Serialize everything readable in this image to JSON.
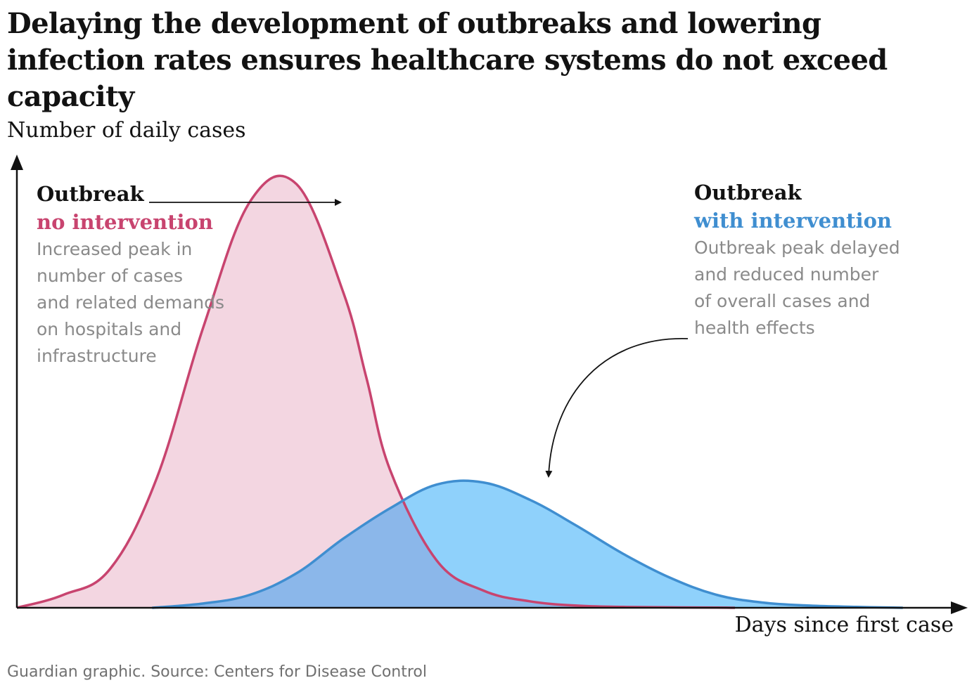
{
  "title": "Delaying the development of outbreaks and lowering infection rates ensures healthcare systems do not exceed capacity",
  "source": "Guardian graphic. Source: Centers for Disease Control",
  "colors": {
    "no_intervention_line": "#c8446f",
    "no_intervention_fill": "#f3d6e1",
    "with_intervention_line": "#3f8ed0",
    "with_intervention_fill": "#8fd1fb",
    "overlap_fill": "#8bb7ea",
    "axis": "#121212",
    "annotation_text": "#8a8a8a"
  },
  "annotations": {
    "left": {
      "head": "Outbreak",
      "sub": "no intervention",
      "desc": "Increased peak in\nnumber of cases\nand related demands\non hospitals and\ninfrastructure"
    },
    "right": {
      "head": "Outbreak",
      "sub": "with intervention",
      "desc": "Outbreak peak delayed\nand reduced number\nof overall cases and\nhealth effects"
    }
  },
  "chart_data": {
    "type": "area",
    "title": "Delaying the development of outbreaks and lowering infection rates ensures healthcare systems do not exceed capacity",
    "xlabel": "Days since first case",
    "ylabel": "Number of daily cases",
    "x_ticks": false,
    "y_ticks": false,
    "grid": false,
    "xlim": [
      0,
      100
    ],
    "ylim": [
      0,
      100
    ],
    "series": [
      {
        "name": "no intervention",
        "x": [
          0,
          5,
          10,
          15,
          20,
          25,
          30,
          35,
          37.5,
          40,
          45,
          50,
          55,
          60,
          65,
          70,
          75,
          77
        ],
        "y": [
          0,
          3,
          9,
          30,
          65,
          94,
          98,
          73,
          53,
          32,
          11,
          4,
          1.5,
          0.5,
          0.2,
          0.1,
          0.05,
          0
        ]
      },
      {
        "name": "with intervention",
        "x": [
          14.5,
          20,
          25,
          30,
          35,
          40,
          45,
          50,
          55,
          60,
          65,
          70,
          75,
          80,
          85,
          90,
          95
        ],
        "y": [
          0,
          1,
          3,
          8,
          16,
          23,
          28.5,
          29,
          25,
          19,
          12.5,
          7,
          3,
          1.2,
          0.5,
          0.2,
          0
        ]
      }
    ]
  }
}
